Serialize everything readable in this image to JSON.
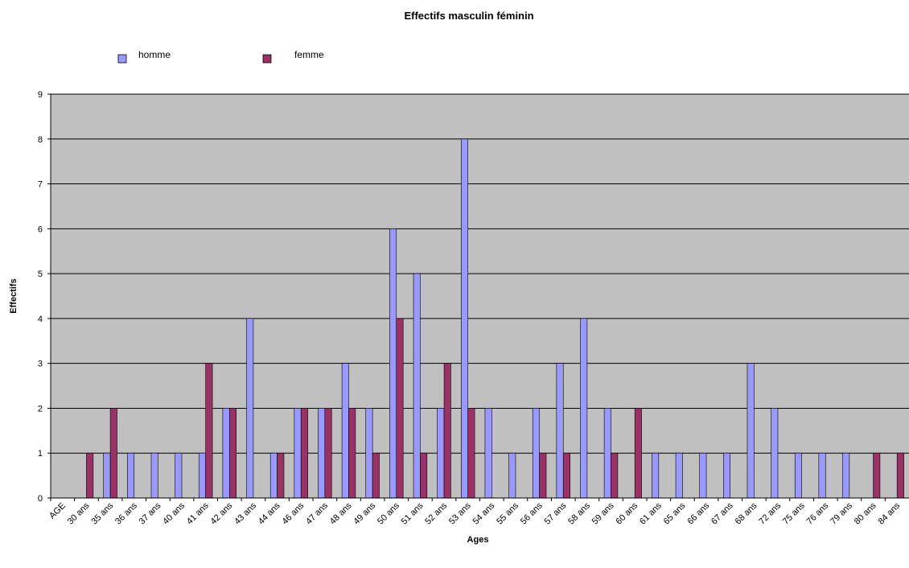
{
  "chart_data": {
    "type": "bar",
    "title": "Effectifs masculin féminin",
    "xlabel": "Ages",
    "ylabel": "Effectifs",
    "ylim": [
      0,
      9
    ],
    "yticks": [
      0,
      1,
      2,
      3,
      4,
      5,
      6,
      7,
      8,
      9
    ],
    "grid": true,
    "legend_position": "top-left",
    "categories": [
      "AGE",
      "30 ans",
      "35 ans",
      "36 ans",
      "37 ans",
      "40 ans",
      "41 ans",
      "42 ans",
      "43 ans",
      "44 ans",
      "46 ans",
      "47 ans",
      "48 ans",
      "49 ans",
      "50 ans",
      "51 ans",
      "52 ans",
      "53 ans",
      "54 ans",
      "55 ans",
      "56 ans",
      "57 ans",
      "58 ans",
      "59 ans",
      "60 ans",
      "61 ans",
      "65 ans",
      "66 ans",
      "67 ans",
      "68 ans",
      "72 ans",
      "75 ans",
      "76 ans",
      "79 ans",
      "80 ans",
      "84 ans"
    ],
    "series": [
      {
        "name": "homme",
        "color": "#9999FF",
        "values": [
          0,
          0,
          1,
          1,
          1,
          1,
          1,
          2,
          4,
          1,
          2,
          2,
          3,
          2,
          6,
          5,
          2,
          8,
          2,
          1,
          2,
          3,
          4,
          2,
          0,
          1,
          1,
          1,
          1,
          3,
          2,
          1,
          1,
          1,
          0,
          0
        ]
      },
      {
        "name": "femme",
        "color": "#993366",
        "values": [
          0,
          1,
          2,
          0,
          0,
          0,
          3,
          2,
          0,
          1,
          2,
          2,
          2,
          1,
          4,
          1,
          3,
          2,
          0,
          0,
          1,
          1,
          0,
          1,
          2,
          0,
          0,
          0,
          0,
          0,
          0,
          0,
          0,
          0,
          1,
          1
        ]
      }
    ],
    "plot_background": "#C0C0C0"
  }
}
